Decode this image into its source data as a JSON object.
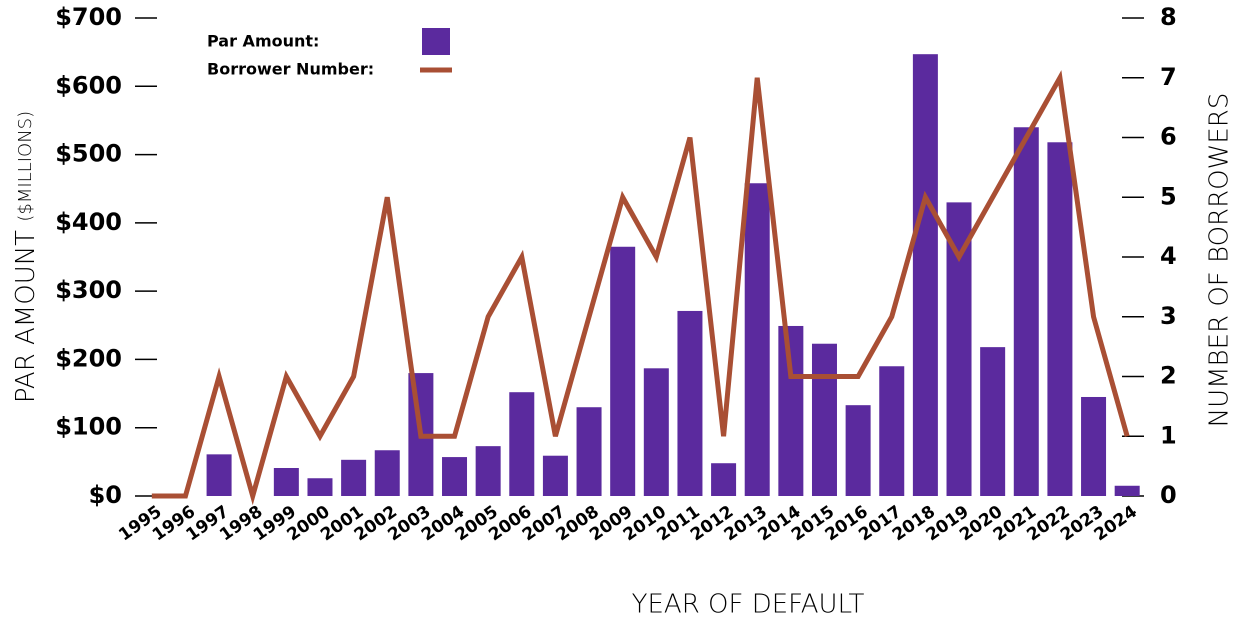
{
  "chart_data": {
    "type": "bar_line",
    "xlabel": "YEAR OF DEFAULT",
    "ylabel": "PAR AMOUNT",
    "ylabel_unit": "($MILLIONS)",
    "y2label": "NUMBER OF BORROWERS",
    "categories": [
      "1995",
      "1996",
      "1997",
      "1998",
      "1999",
      "2000",
      "2001",
      "2002",
      "2003",
      "2004",
      "2005",
      "2006",
      "2007",
      "2008",
      "2009",
      "2010",
      "2011",
      "2012",
      "2013",
      "2014",
      "2015",
      "2016",
      "2017",
      "2018",
      "2019",
      "2020",
      "2021",
      "2022",
      "2023",
      "2024"
    ],
    "series": [
      {
        "name": "Par Amount:",
        "color": "#5b2a9e",
        "type": "bar",
        "values": [
          0,
          0,
          61,
          0,
          41,
          26,
          53,
          67,
          180,
          57,
          73,
          152,
          59,
          130,
          365,
          187,
          271,
          48,
          458,
          249,
          223,
          133,
          190,
          647,
          430,
          218,
          540,
          518,
          145,
          15
        ]
      },
      {
        "name": "Borrower Number:",
        "color": "#a94f34",
        "type": "line",
        "axis": "y2",
        "values": [
          0,
          0,
          2,
          0,
          2,
          1,
          2,
          5,
          1,
          1,
          3,
          4,
          1,
          3,
          5,
          4,
          6,
          1,
          7,
          2,
          2,
          2,
          3,
          5,
          4,
          5,
          6,
          7,
          3,
          1
        ]
      }
    ],
    "ylim": [
      0,
      700
    ],
    "yticks": [
      {
        "value": 0,
        "label": "$0"
      },
      {
        "value": 100,
        "label": "$100"
      },
      {
        "value": 200,
        "label": "$200"
      },
      {
        "value": 300,
        "label": "$300"
      },
      {
        "value": 400,
        "label": "$400"
      },
      {
        "value": 500,
        "label": "$500"
      },
      {
        "value": 600,
        "label": "$600"
      },
      {
        "value": 700,
        "label": "$700"
      }
    ],
    "y2lim": [
      0,
      8
    ],
    "y2ticks": [
      0,
      1,
      2,
      3,
      4,
      5,
      6,
      7,
      8
    ]
  }
}
